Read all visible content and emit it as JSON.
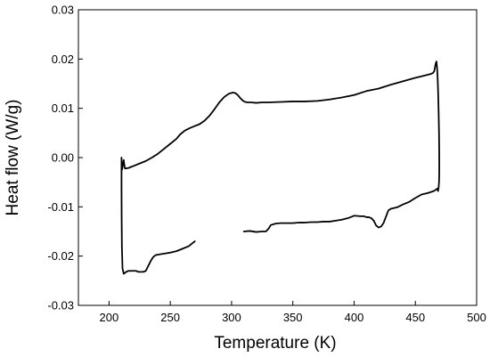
{
  "chart_data": {
    "type": "line",
    "title": "",
    "xlabel": "Temperature (K)",
    "ylabel": "Heat flow (W/g)",
    "xlim": [
      175,
      500
    ],
    "ylim": [
      -0.03,
      0.03
    ],
    "x_ticks": [
      200,
      250,
      300,
      350,
      400,
      450,
      500
    ],
    "x_tick_labels": [
      "200",
      "250",
      "300",
      "350",
      "400",
      "450",
      "500"
    ],
    "y_ticks": [
      -0.03,
      -0.02,
      -0.01,
      0.0,
      0.01,
      0.02,
      0.03
    ],
    "y_tick_labels": [
      "-0.03",
      "-0.02",
      "-0.01",
      "0.00",
      "0.01",
      "0.02",
      "0.03"
    ],
    "grid": false,
    "legend": "none",
    "line_color": "#000000",
    "series": [
      {
        "x": [
          270,
          265,
          260,
          255,
          250,
          245,
          240,
          238,
          236,
          234,
          232,
          230,
          228,
          226,
          224,
          222,
          220,
          218,
          216,
          214,
          212,
          211,
          210.5,
          210.3,
          210.2,
          210.2,
          210.3,
          210.5,
          211,
          211.5,
          212,
          212.5,
          213,
          214,
          216,
          218,
          220,
          225,
          230,
          235,
          240,
          245,
          250,
          255,
          258,
          262,
          266,
          270,
          274,
          278,
          282,
          286,
          290,
          294,
          298,
          301,
          303,
          305,
          307,
          309,
          311,
          313,
          316,
          320,
          325,
          330,
          340,
          350,
          360,
          370,
          380,
          390,
          400,
          410,
          420,
          430,
          440,
          450,
          455,
          460,
          463,
          464.5,
          465.5,
          466.5,
          467.2,
          467.8,
          468.2,
          468.6,
          469,
          469.3,
          469.5,
          469.5,
          469.3,
          469,
          468.5,
          468
        ],
        "y": [
          -0.017,
          -0.018,
          -0.0185,
          -0.019,
          -0.0193,
          -0.0195,
          -0.0197,
          -0.0198,
          -0.0202,
          -0.021,
          -0.022,
          -0.023,
          -0.0232,
          -0.0232,
          -0.0232,
          -0.023,
          -0.023,
          -0.023,
          -0.023,
          -0.0232,
          -0.0236,
          -0.0225,
          -0.018,
          -0.012,
          -0.006,
          0.0,
          -0.0015,
          -0.0025,
          -0.002,
          -0.001,
          -0.0005,
          -0.0015,
          -0.0022,
          -0.0022,
          -0.0021,
          -0.0019,
          -0.0017,
          -0.0012,
          -0.0007,
          0.0,
          0.0008,
          0.0018,
          0.0028,
          0.0038,
          0.0047,
          0.0055,
          0.006,
          0.0064,
          0.0068,
          0.0075,
          0.0085,
          0.0098,
          0.0112,
          0.0123,
          0.013,
          0.0132,
          0.0131,
          0.0127,
          0.0121,
          0.0116,
          0.0113,
          0.0112,
          0.0112,
          0.0111,
          0.0112,
          0.0112,
          0.0113,
          0.0114,
          0.0114,
          0.0115,
          0.0118,
          0.0122,
          0.0127,
          0.0135,
          0.014,
          0.0148,
          0.0155,
          0.0162,
          0.0165,
          0.0168,
          0.017,
          0.0172,
          0.0176,
          0.019,
          0.0195,
          0.018,
          0.016,
          0.013,
          0.009,
          0.005,
          0.0,
          -0.003,
          -0.005,
          -0.006,
          -0.0068,
          -0.0063
        ]
      },
      {
        "x": [
          468,
          465,
          460,
          455,
          450,
          445,
          440,
          435,
          430,
          428,
          426,
          424,
          422,
          420,
          418,
          416,
          414,
          412,
          410,
          408,
          405,
          400,
          398,
          395,
          390,
          385,
          380,
          375,
          370,
          365,
          360,
          355,
          350,
          345,
          340,
          336,
          332,
          330,
          328,
          325,
          320,
          315,
          310
        ],
        "y": [
          -0.0063,
          -0.0068,
          -0.0072,
          -0.0075,
          -0.0082,
          -0.009,
          -0.0095,
          -0.0101,
          -0.0104,
          -0.0107,
          -0.012,
          -0.0133,
          -0.014,
          -0.0142,
          -0.0138,
          -0.0128,
          -0.0123,
          -0.0121,
          -0.0121,
          -0.0119,
          -0.0119,
          -0.0118,
          -0.012,
          -0.0123,
          -0.0126,
          -0.0128,
          -0.013,
          -0.013,
          -0.0131,
          -0.0131,
          -0.0132,
          -0.0132,
          -0.0133,
          -0.0133,
          -0.0133,
          -0.0134,
          -0.0137,
          -0.0145,
          -0.015,
          -0.015,
          -0.0151,
          -0.0149,
          -0.015
        ]
      }
    ]
  }
}
